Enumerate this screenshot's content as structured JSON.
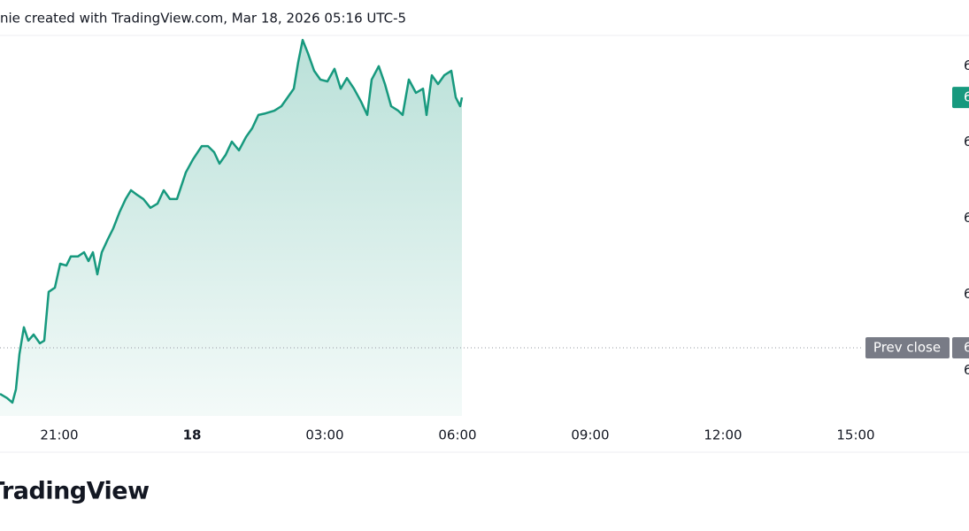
{
  "chart_data": {
    "type": "area",
    "title": "nie created with TradingView.com, Mar 18, 2026 05:16 UTC-5",
    "brand": "TradingView",
    "color": "#17997e",
    "x": [
      -4.34,
      -4.18,
      -4.06,
      -3.98,
      -3.9,
      -3.8,
      -3.7,
      -3.58,
      -3.44,
      -3.34,
      -3.24,
      -3.1,
      -2.98,
      -2.84,
      -2.74,
      -2.58,
      -2.44,
      -2.34,
      -2.24,
      -2.14,
      -2.04,
      -1.9,
      -1.78,
      -1.64,
      -1.5,
      -1.38,
      -1.24,
      -1.1,
      -0.94,
      -0.78,
      -0.64,
      -0.5,
      -0.34,
      -0.14,
      0.02,
      0.22,
      0.36,
      0.5,
      0.62,
      0.76,
      0.9,
      1.06,
      1.22,
      1.36,
      1.5,
      1.66,
      1.86,
      2.02,
      2.16,
      2.3,
      2.4,
      2.5,
      2.62,
      2.76,
      2.9,
      3.06,
      3.22,
      3.36,
      3.5,
      3.66,
      3.82,
      3.96,
      4.06,
      4.22,
      4.36,
      4.5,
      4.66,
      4.76,
      4.9,
      5.06,
      5.22,
      5.3,
      5.42,
      5.56,
      5.7,
      5.86,
      5.96,
      6.06,
      6.1
    ],
    "values": [
      5.8,
      4.7,
      3.5,
      7.0,
      16.3,
      23.3,
      19.8,
      21.4,
      19.1,
      19.8,
      32.6,
      33.7,
      40.0,
      39.5,
      41.9,
      41.9,
      43.0,
      40.7,
      43.0,
      37.2,
      43.0,
      46.5,
      49.3,
      53.5,
      57.0,
      59.3,
      58.1,
      57.0,
      54.7,
      55.8,
      59.3,
      57.0,
      57.0,
      64.0,
      67.4,
      70.9,
      70.9,
      69.3,
      66.3,
      68.6,
      72.1,
      69.8,
      73.3,
      75.6,
      79.1,
      79.5,
      80.2,
      81.4,
      83.7,
      86.0,
      93.0,
      98.8,
      95.3,
      90.7,
      88.4,
      87.9,
      91.2,
      86.0,
      88.8,
      86.0,
      82.6,
      79.1,
      88.4,
      91.9,
      87.2,
      81.4,
      80.2,
      79.1,
      88.4,
      84.9,
      86.0,
      79.1,
      89.5,
      87.2,
      89.5,
      90.7,
      83.7,
      81.4,
      83.7
    ],
    "xlim": [
      -4.34,
      17.16
    ],
    "xticks": [
      {
        "value": -3,
        "label": "21:00"
      },
      0,
      {
        "value": 3,
        "label": "03:00"
      },
      {
        "value": 6,
        "label": "06:00"
      },
      {
        "value": 9,
        "label": "09:00"
      },
      {
        "value": 12,
        "label": "12:00"
      },
      {
        "value": 15,
        "label": "15:00"
      }
    ],
    "xtick_labels": {
      "0": "18"
    },
    "ylim": [
      0,
      100
    ],
    "yticks": [
      {
        "value": 12,
        "label": "6"
      },
      {
        "value": 32,
        "label": "6"
      },
      {
        "value": 52,
        "label": "6"
      },
      {
        "value": 72,
        "label": "6"
      },
      {
        "value": 92,
        "label": "6"
      }
    ],
    "last_price_label": "6",
    "prev_close": 17.9,
    "prev_close_name": "Prev close",
    "prev_close_label": "6"
  }
}
